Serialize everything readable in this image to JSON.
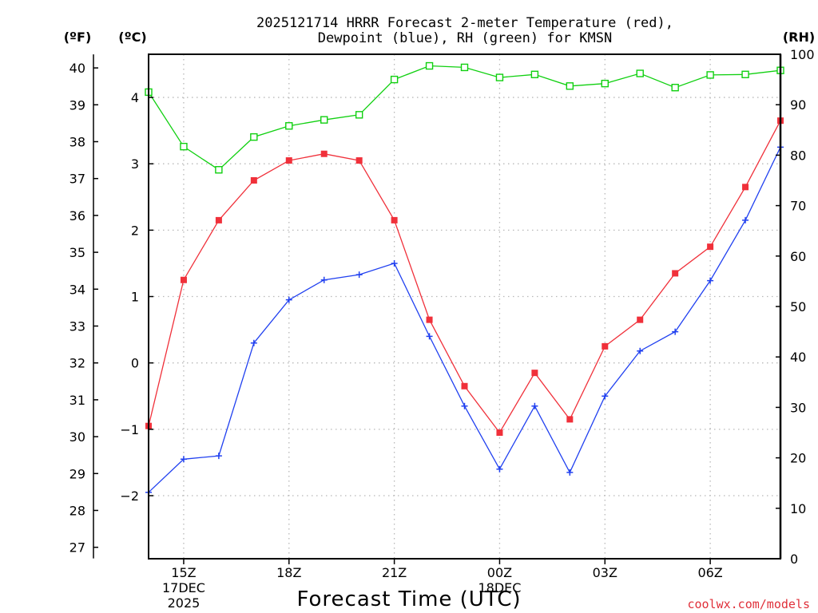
{
  "chart_data": {
    "type": "line",
    "title_line1": "2025121714 HRRR Forecast 2-meter Temperature (red),",
    "title_line2": "Dewpoint (blue), RH (green) for KMSN",
    "xlabel": "Forecast Time (UTC)",
    "credit": "coolwx.com/models",
    "units": {
      "fahrenheit": "(ºF)",
      "celsius": "(ºC)",
      "rh": "(RH)"
    },
    "x": [
      14,
      15,
      16,
      17,
      18,
      19,
      20,
      21,
      22,
      23,
      24,
      25,
      26,
      27,
      28,
      29,
      30,
      31,
      32
    ],
    "xlim": [
      14,
      32
    ],
    "x_ticks": [
      {
        "x": 15,
        "label": "15Z",
        "sub1": "17DEC",
        "sub2": "2025"
      },
      {
        "x": 18,
        "label": "18Z",
        "sub1": "",
        "sub2": ""
      },
      {
        "x": 21,
        "label": "21Z",
        "sub1": "",
        "sub2": ""
      },
      {
        "x": 24,
        "label": "00Z",
        "sub1": "18DEC",
        "sub2": ""
      },
      {
        "x": 27,
        "label": "03Z",
        "sub1": "",
        "sub2": ""
      },
      {
        "x": 30,
        "label": "06Z",
        "sub1": "",
        "sub2": ""
      }
    ],
    "y_celsius_lim": [
      -2.95,
      4.65
    ],
    "y_celsius_ticks": [
      -2,
      -1,
      0,
      1,
      2,
      3,
      4
    ],
    "y_fahrenheit_ticks": [
      27,
      28,
      29,
      30,
      31,
      32,
      33,
      34,
      35,
      36,
      37,
      38,
      39,
      40
    ],
    "y_rh_lim": [
      0,
      100
    ],
    "y_rh_ticks": [
      0,
      10,
      20,
      30,
      40,
      50,
      60,
      70,
      80,
      90,
      100
    ],
    "series": [
      {
        "name": "Temperature",
        "axis": "celsius",
        "color": "#f0303a",
        "marker": "filled-square",
        "values": [
          -0.95,
          1.25,
          2.15,
          2.75,
          3.05,
          3.15,
          3.05,
          2.15,
          0.65,
          -0.35,
          -1.05,
          -0.15,
          -0.85,
          0.25,
          0.65,
          1.35,
          1.75,
          2.65,
          3.65
        ]
      },
      {
        "name": "Dewpoint",
        "axis": "celsius",
        "color": "#2040f0",
        "marker": "plus",
        "values": [
          -1.95,
          -1.45,
          -1.4,
          0.3,
          0.95,
          1.25,
          1.33,
          1.5,
          0.4,
          -0.65,
          -1.6,
          -0.65,
          -1.65,
          -0.5,
          0.18,
          0.47,
          1.24,
          2.15,
          3.25
        ]
      },
      {
        "name": "RH",
        "axis": "rh",
        "color": "#10d010",
        "marker": "open-square",
        "values": [
          92.5,
          81.7,
          77.1,
          83.6,
          85.8,
          87.0,
          88.0,
          95.0,
          97.7,
          97.4,
          95.4,
          96.0,
          93.7,
          94.2,
          96.2,
          93.4,
          95.9,
          96.0,
          96.8
        ]
      }
    ]
  }
}
